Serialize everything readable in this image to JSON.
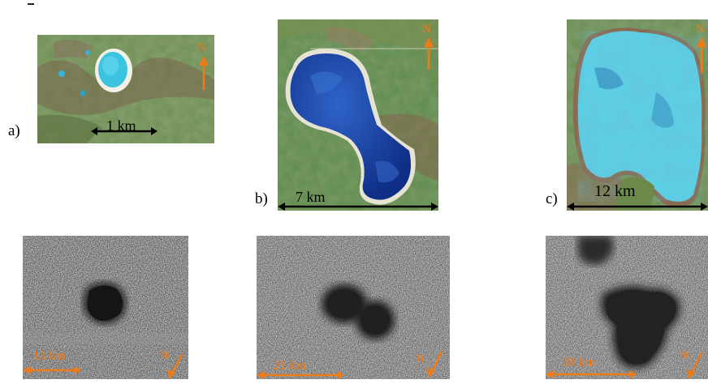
{
  "top_row": {
    "panels": [
      {
        "label": "a)",
        "scale_text": "1 km",
        "north": "N"
      },
      {
        "label": "b)",
        "scale_text": "7 km",
        "north": "N"
      },
      {
        "label": "c)",
        "scale_text": "12 km",
        "north": "N"
      }
    ]
  },
  "bottom_row": {
    "panels": [
      {
        "scale_text": "13 km",
        "north": "N"
      },
      {
        "scale_text": "21 km",
        "north": "N"
      },
      {
        "scale_text": "38 km",
        "north": "N"
      }
    ]
  },
  "colors": {
    "arrow_orange": "#f07a14",
    "scale_black": "#000000",
    "lake_blue_dark": "#1a3f9c",
    "lake_cyan": "#5cd0e6",
    "terrain_green": "#6f8f52"
  }
}
